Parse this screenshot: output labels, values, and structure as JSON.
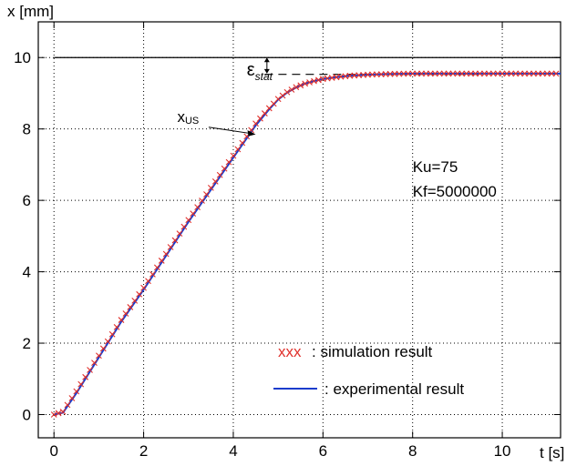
{
  "chart_data": {
    "type": "line",
    "title": "",
    "ylabel": "x [mm]",
    "xlabel": "t [s]",
    "xlim": [
      -0.35,
      11.3
    ],
    "ylim": [
      -0.65,
      11.0
    ],
    "xticks": [
      0,
      2,
      4,
      6,
      8,
      10
    ],
    "yticks": [
      0,
      2,
      4,
      6,
      8,
      10
    ],
    "grid": true,
    "legend_position": "bottom-right",
    "reference_level": 10,
    "steady_state": 9.55,
    "annotations": {
      "epsilon_symbol": "ε",
      "epsilon_subscript": "stat",
      "xus_main": "x",
      "xus_sub": "US",
      "ku": "Ku=75",
      "kf": "Kf=5000000"
    },
    "legend": {
      "sim_marker": "xxx",
      "sim_label": ": simulation result",
      "exp_label": ": experimental result"
    },
    "colors": {
      "simulation": "#e0302b",
      "experimental": "#1a3ccc",
      "reference": "#000000"
    },
    "series": [
      {
        "name": "experimental result",
        "style": "line",
        "x": [
          0,
          0.2,
          0.5,
          1.0,
          1.5,
          2.0,
          2.5,
          3.0,
          3.5,
          4.0,
          4.5,
          4.8,
          5.0,
          5.2,
          5.4,
          5.6,
          5.8,
          6.0,
          6.3,
          6.6,
          7.0,
          7.5,
          8.0,
          9.0,
          10.0,
          11.0,
          11.3
        ],
        "y": [
          0,
          0.05,
          0.6,
          1.6,
          2.6,
          3.5,
          4.45,
          5.4,
          6.3,
          7.2,
          8.1,
          8.55,
          8.82,
          9.02,
          9.16,
          9.27,
          9.34,
          9.4,
          9.45,
          9.49,
          9.52,
          9.54,
          9.55,
          9.55,
          9.55,
          9.55,
          9.55
        ]
      },
      {
        "name": "simulation result",
        "style": "markers",
        "x": [
          0,
          0.2,
          0.5,
          1.0,
          1.5,
          2.0,
          2.5,
          3.0,
          3.5,
          4.0,
          4.5,
          4.8,
          5.0,
          5.2,
          5.4,
          5.6,
          5.8,
          6.0,
          6.3,
          6.6,
          7.0,
          7.5,
          8.0,
          9.0,
          10.0,
          11.0,
          11.3
        ],
        "y": [
          0,
          0.08,
          0.65,
          1.65,
          2.65,
          3.55,
          4.5,
          5.45,
          6.35,
          7.25,
          8.15,
          8.58,
          8.84,
          9.03,
          9.17,
          9.27,
          9.34,
          9.4,
          9.45,
          9.49,
          9.52,
          9.54,
          9.55,
          9.55,
          9.55,
          9.55,
          9.55
        ]
      }
    ]
  }
}
